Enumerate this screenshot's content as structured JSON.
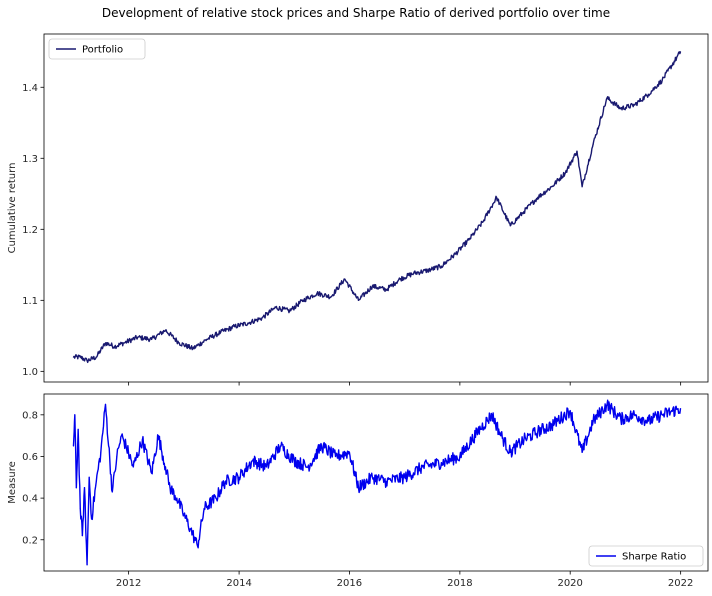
{
  "figure": {
    "title": "Development of relative stock prices and Sharpe Ratio of derived portfolio over time"
  },
  "chart_data": [
    {
      "type": "line",
      "title": "",
      "xlabel": "",
      "ylabel": "Cumulative return",
      "x_type": "date",
      "xlim": [
        "2010-06-20",
        "2022-07-01"
      ],
      "ylim": [
        0.985,
        1.475
      ],
      "yticks": [
        1.0,
        1.1,
        1.2,
        1.3,
        1.4
      ],
      "ytick_labels": [
        "1.0",
        "1.1",
        "1.2",
        "1.3",
        "1.4"
      ],
      "show_xtick_labels": false,
      "legend": {
        "position": "top-left"
      },
      "grid": false,
      "series": [
        {
          "name": "Portfolio",
          "color": "#191970",
          "x": [
            "2011-01-01",
            "2011-02-15",
            "2011-04-01",
            "2011-06-01",
            "2011-08-01",
            "2011-10-01",
            "2011-12-01",
            "2012-03-01",
            "2012-06-01",
            "2012-09-01",
            "2012-12-01",
            "2013-03-01",
            "2013-06-01",
            "2013-09-01",
            "2013-12-01",
            "2014-03-01",
            "2014-06-01",
            "2014-09-01",
            "2014-12-01",
            "2015-03-01",
            "2015-06-01",
            "2015-09-01",
            "2015-12-01",
            "2016-03-01",
            "2016-06-01",
            "2016-09-01",
            "2016-12-01",
            "2017-03-01",
            "2017-06-01",
            "2017-09-01",
            "2017-12-01",
            "2018-03-01",
            "2018-06-01",
            "2018-09-01",
            "2018-12-01",
            "2019-03-01",
            "2019-06-01",
            "2019-09-01",
            "2019-12-01",
            "2020-02-15",
            "2020-03-20",
            "2020-06-01",
            "2020-09-01",
            "2020-12-01",
            "2021-03-01",
            "2021-06-01",
            "2021-09-01",
            "2021-12-31"
          ],
          "y": [
            1.02,
            1.02,
            1.015,
            1.02,
            1.04,
            1.035,
            1.04,
            1.048,
            1.045,
            1.058,
            1.04,
            1.032,
            1.045,
            1.055,
            1.063,
            1.068,
            1.075,
            1.09,
            1.085,
            1.1,
            1.11,
            1.105,
            1.13,
            1.1,
            1.12,
            1.115,
            1.13,
            1.138,
            1.142,
            1.148,
            1.165,
            1.185,
            1.21,
            1.245,
            1.205,
            1.225,
            1.245,
            1.26,
            1.28,
            1.31,
            1.26,
            1.32,
            1.385,
            1.37,
            1.375,
            1.39,
            1.41,
            1.45
          ]
        }
      ]
    },
    {
      "type": "line",
      "title": "",
      "xlabel": "",
      "ylabel": "Measure",
      "x_type": "date",
      "xlim": [
        "2010-06-20",
        "2022-07-01"
      ],
      "ylim": [
        0.05,
        0.9
      ],
      "yticks": [
        0.2,
        0.4,
        0.6,
        0.8
      ],
      "ytick_labels": [
        "0.2",
        "0.4",
        "0.6",
        "0.8"
      ],
      "xticks": [
        "2012-01-01",
        "2014-01-01",
        "2016-01-01",
        "2018-01-01",
        "2020-01-01",
        "2022-01-01"
      ],
      "xtick_labels": [
        "2012",
        "2014",
        "2016",
        "2018",
        "2020",
        "2022"
      ],
      "legend": {
        "position": "lower-right"
      },
      "grid": false,
      "series": [
        {
          "name": "Sharpe Ratio",
          "color": "#0000ee",
          "x": [
            "2011-01-01",
            "2011-01-10",
            "2011-01-20",
            "2011-02-01",
            "2011-02-15",
            "2011-03-01",
            "2011-03-15",
            "2011-04-01",
            "2011-04-15",
            "2011-05-01",
            "2011-06-01",
            "2011-07-01",
            "2011-08-01",
            "2011-09-15",
            "2011-10-15",
            "2011-11-15",
            "2011-12-15",
            "2012-02-01",
            "2012-04-01",
            "2012-06-01",
            "2012-07-15",
            "2012-09-01",
            "2012-10-01",
            "2012-11-15",
            "2013-01-01",
            "2013-02-15",
            "2013-04-01",
            "2013-05-15",
            "2013-08-01",
            "2013-10-01",
            "2014-01-01",
            "2014-04-01",
            "2014-07-01",
            "2014-10-01",
            "2015-01-01",
            "2015-04-01",
            "2015-07-01",
            "2015-10-01",
            "2016-01-01",
            "2016-03-01",
            "2016-06-01",
            "2016-09-01",
            "2017-01-01",
            "2017-05-01",
            "2017-09-01",
            "2018-01-01",
            "2018-05-01",
            "2018-08-01",
            "2018-10-01",
            "2018-12-01",
            "2019-03-01",
            "2019-06-01",
            "2019-09-01",
            "2020-01-01",
            "2020-03-20",
            "2020-06-01",
            "2020-09-01",
            "2020-12-01",
            "2021-03-01",
            "2021-06-01",
            "2021-09-01",
            "2021-12-31"
          ],
          "y": [
            0.65,
            0.8,
            0.45,
            0.73,
            0.35,
            0.22,
            0.45,
            0.08,
            0.5,
            0.3,
            0.48,
            0.62,
            0.85,
            0.43,
            0.6,
            0.7,
            0.65,
            0.55,
            0.68,
            0.52,
            0.7,
            0.55,
            0.45,
            0.4,
            0.32,
            0.25,
            0.17,
            0.35,
            0.4,
            0.48,
            0.5,
            0.58,
            0.55,
            0.65,
            0.58,
            0.55,
            0.65,
            0.6,
            0.62,
            0.45,
            0.5,
            0.48,
            0.5,
            0.55,
            0.57,
            0.6,
            0.72,
            0.8,
            0.7,
            0.62,
            0.68,
            0.72,
            0.75,
            0.82,
            0.62,
            0.77,
            0.85,
            0.78,
            0.8,
            0.77,
            0.8,
            0.83
          ]
        }
      ]
    }
  ]
}
